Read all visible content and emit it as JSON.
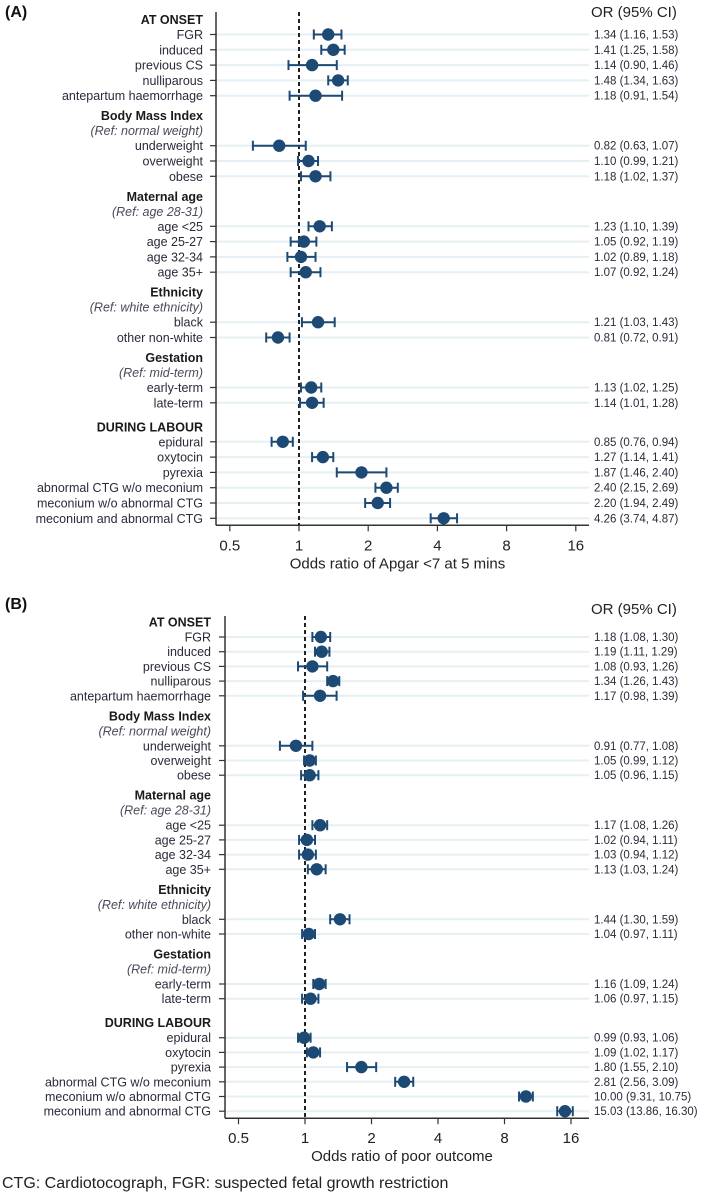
{
  "colors": {
    "marker": "#1d4a74",
    "grid": "#e6eff4",
    "axis": "#333333",
    "refline": "#222222"
  },
  "chart_data": [
    {
      "type": "forest",
      "panel_label": "(A)",
      "column_header": "OR (95% CI)",
      "xlabel": "Odds ratio of Apgar <7 at 5 mins",
      "xscale": "log2",
      "xticks": [
        0.5,
        1,
        2,
        4,
        8,
        16
      ],
      "xtick_labels": [
        "0.5",
        "1",
        "2",
        "4",
        "8",
        "16"
      ],
      "reference_line": 1,
      "groups": [
        {
          "header": "AT ONSET",
          "ref": null,
          "rows": [
            {
              "label": "FGR",
              "or": 1.34,
              "lo": 1.16,
              "hi": 1.53
            },
            {
              "label": "induced",
              "or": 1.41,
              "lo": 1.25,
              "hi": 1.58
            },
            {
              "label": "previous CS",
              "or": 1.14,
              "lo": 0.9,
              "hi": 1.46
            },
            {
              "label": "nulliparous",
              "or": 1.48,
              "lo": 1.34,
              "hi": 1.63
            },
            {
              "label": "antepartum haemorrhage",
              "or": 1.18,
              "lo": 0.91,
              "hi": 1.54
            }
          ]
        },
        {
          "header": "Body Mass Index",
          "ref": "(Ref: normal weight)",
          "rows": [
            {
              "label": "underweight",
              "or": 0.82,
              "lo": 0.63,
              "hi": 1.07
            },
            {
              "label": "overweight",
              "or": 1.1,
              "lo": 0.99,
              "hi": 1.21
            },
            {
              "label": "obese",
              "or": 1.18,
              "lo": 1.02,
              "hi": 1.37
            }
          ]
        },
        {
          "header": "Maternal age",
          "ref": "(Ref: age 28-31)",
          "rows": [
            {
              "label": "age <25",
              "or": 1.23,
              "lo": 1.1,
              "hi": 1.39
            },
            {
              "label": "age 25-27",
              "or": 1.05,
              "lo": 0.92,
              "hi": 1.19
            },
            {
              "label": "age 32-34",
              "or": 1.02,
              "lo": 0.89,
              "hi": 1.18
            },
            {
              "label": "age 35+",
              "or": 1.07,
              "lo": 0.92,
              "hi": 1.24
            }
          ]
        },
        {
          "header": "Ethnicity",
          "ref": "(Ref: white ethnicity)",
          "rows": [
            {
              "label": "black",
              "or": 1.21,
              "lo": 1.03,
              "hi": 1.43
            },
            {
              "label": "other non-white",
              "or": 0.81,
              "lo": 0.72,
              "hi": 0.91
            }
          ]
        },
        {
          "header": "Gestation",
          "ref": "(Ref: mid-term)",
          "rows": [
            {
              "label": "early-term",
              "or": 1.13,
              "lo": 1.02,
              "hi": 1.25
            },
            {
              "label": "late-term",
              "or": 1.14,
              "lo": 1.01,
              "hi": 1.28
            }
          ]
        },
        {
          "header": "DURING LABOUR",
          "ref": null,
          "rows": [
            {
              "label": "epidural",
              "or": 0.85,
              "lo": 0.76,
              "hi": 0.94
            },
            {
              "label": "oxytocin",
              "or": 1.27,
              "lo": 1.14,
              "hi": 1.41
            },
            {
              "label": "pyrexia",
              "or": 1.87,
              "lo": 1.46,
              "hi": 2.4
            },
            {
              "label": "abnormal CTG w/o meconium",
              "or": 2.4,
              "lo": 2.15,
              "hi": 2.69
            },
            {
              "label": "meconium w/o abnormal CTG",
              "or": 2.2,
              "lo": 1.94,
              "hi": 2.49
            },
            {
              "label": "meconium and abnormal CTG",
              "or": 4.26,
              "lo": 3.74,
              "hi": 4.87
            }
          ]
        }
      ]
    },
    {
      "type": "forest",
      "panel_label": "(B)",
      "column_header": "OR (95% CI)",
      "xlabel": "Odds ratio of poor outcome",
      "xscale": "log2",
      "xticks": [
        0.5,
        1,
        2,
        4,
        8,
        16
      ],
      "xtick_labels": [
        "0.5",
        "1",
        "2",
        "4",
        "8",
        "16"
      ],
      "reference_line": 1,
      "groups": [
        {
          "header": "AT ONSET",
          "ref": null,
          "rows": [
            {
              "label": "FGR",
              "or": 1.18,
              "lo": 1.08,
              "hi": 1.3
            },
            {
              "label": "induced",
              "or": 1.19,
              "lo": 1.11,
              "hi": 1.29
            },
            {
              "label": "previous CS",
              "or": 1.08,
              "lo": 0.93,
              "hi": 1.26
            },
            {
              "label": "nulliparous",
              "or": 1.34,
              "lo": 1.26,
              "hi": 1.43
            },
            {
              "label": "antepartum haemorrhage",
              "or": 1.17,
              "lo": 0.98,
              "hi": 1.39
            }
          ]
        },
        {
          "header": "Body Mass Index",
          "ref": "(Ref: normal weight)",
          "rows": [
            {
              "label": "underweight",
              "or": 0.91,
              "lo": 0.77,
              "hi": 1.08
            },
            {
              "label": "overweight",
              "or": 1.05,
              "lo": 0.99,
              "hi": 1.12
            },
            {
              "label": "obese",
              "or": 1.05,
              "lo": 0.96,
              "hi": 1.15
            }
          ]
        },
        {
          "header": "Maternal age",
          "ref": "(Ref: age 28-31)",
          "rows": [
            {
              "label": "age <25",
              "or": 1.17,
              "lo": 1.08,
              "hi": 1.26
            },
            {
              "label": "age 25-27",
              "or": 1.02,
              "lo": 0.94,
              "hi": 1.11
            },
            {
              "label": "age 32-34",
              "or": 1.03,
              "lo": 0.94,
              "hi": 1.12
            },
            {
              "label": "age 35+",
              "or": 1.13,
              "lo": 1.03,
              "hi": 1.24
            }
          ]
        },
        {
          "header": "Ethnicity",
          "ref": "(Ref: white ethnicity)",
          "rows": [
            {
              "label": "black",
              "or": 1.44,
              "lo": 1.3,
              "hi": 1.59
            },
            {
              "label": "other non-white",
              "or": 1.04,
              "lo": 0.97,
              "hi": 1.11
            }
          ]
        },
        {
          "header": "Gestation",
          "ref": "(Ref: mid-term)",
          "rows": [
            {
              "label": "early-term",
              "or": 1.16,
              "lo": 1.09,
              "hi": 1.24
            },
            {
              "label": "late-term",
              "or": 1.06,
              "lo": 0.97,
              "hi": 1.15
            }
          ]
        },
        {
          "header": "DURING LABOUR",
          "ref": null,
          "rows": [
            {
              "label": "epidural",
              "or": 0.99,
              "lo": 0.93,
              "hi": 1.06
            },
            {
              "label": "oxytocin",
              "or": 1.09,
              "lo": 1.02,
              "hi": 1.17
            },
            {
              "label": "pyrexia",
              "or": 1.8,
              "lo": 1.55,
              "hi": 2.1
            },
            {
              "label": "abnormal CTG w/o meconium",
              "or": 2.81,
              "lo": 2.56,
              "hi": 3.09
            },
            {
              "label": "meconium w/o abnormal CTG",
              "or": 10.0,
              "lo": 9.31,
              "hi": 10.75
            },
            {
              "label": "meconium and abnormal CTG",
              "or": 15.03,
              "lo": 13.86,
              "hi": 16.3
            }
          ]
        }
      ]
    }
  ],
  "footnote": "CTG: Cardiotocograph, FGR: suspected fetal growth restriction"
}
